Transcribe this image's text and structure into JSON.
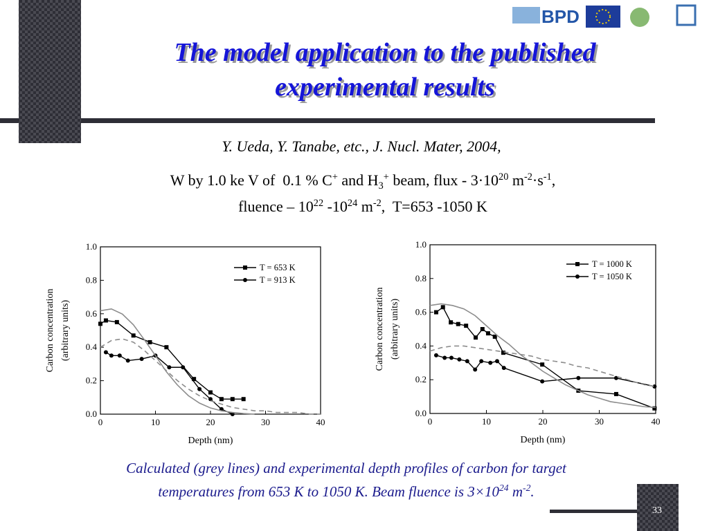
{
  "slide": {
    "logo": "BPD",
    "title": [
      "The model application to the published",
      "experimental results"
    ],
    "reference": "Y. Ueda, Y. Tanabe, etc., J. Nucl. Mater, 2004,",
    "conditions": [
      [
        {
          "text": "W by 1.0 ke V of  0.1 % C"
        },
        {
          "sup": "+"
        },
        {
          "text": " and H"
        },
        {
          "sub": "3"
        },
        {
          "sup": "+"
        },
        {
          "text": " beam, flux - 3·10"
        },
        {
          "sup": "20"
        },
        {
          "text": " m"
        },
        {
          "sup": "-2"
        },
        {
          "text": "·s"
        },
        {
          "sup": "-1"
        },
        {
          "text": ","
        }
      ],
      [
        {
          "text": "fluence – 10"
        },
        {
          "sup": "22"
        },
        {
          "text": " -10"
        },
        {
          "sup": "24"
        },
        {
          "text": " m"
        },
        {
          "sup": "-2"
        },
        {
          "text": ",  T=653 -1050 K"
        }
      ]
    ],
    "caption": [
      [
        {
          "text": "Calculated (grey lines) and experimental depth profiles of carbon for target"
        }
      ],
      [
        {
          "text": "temperatures from 653 K to 1050 K. Beam fluence is 3×10"
        },
        {
          "sup": "24"
        },
        {
          "text": " m"
        },
        {
          "sup": "-2"
        },
        {
          "text": "."
        }
      ]
    ],
    "page": "33"
  },
  "chart_data": [
    {
      "type": "line",
      "xlabel": "Depth (nm)",
      "ylabel": [
        "Carbon concentration",
        "(arbitrary units)"
      ],
      "xlim": [
        0,
        40
      ],
      "ylim": [
        0,
        1
      ],
      "xticks": [
        0,
        10,
        20,
        30,
        40
      ],
      "yticks": [
        {
          "value": 0,
          "label": "0.0"
        },
        0.2,
        0.4,
        0.6,
        0.8,
        {
          "value": 1,
          "label": "1.0"
        }
      ],
      "legend": "upper right",
      "series": [
        {
          "name": "T = 653 K",
          "color": "#000000",
          "marker": "square",
          "x": [
            0,
            1,
            3,
            6,
            9,
            12,
            17,
            20,
            22,
            24,
            26
          ],
          "values": [
            0.54,
            0.56,
            0.55,
            0.47,
            0.43,
            0.4,
            0.21,
            0.13,
            0.09,
            0.09,
            0.09
          ]
        },
        {
          "name": "T = 913 K",
          "color": "#000000",
          "marker": "circle",
          "x": [
            1,
            2,
            3.5,
            5,
            7.5,
            10,
            12.5,
            15,
            18,
            20,
            22,
            24
          ],
          "values": [
            0.37,
            0.35,
            0.35,
            0.32,
            0.33,
            0.35,
            0.28,
            0.28,
            0.15,
            0.09,
            0.03,
            0.0
          ]
        },
        {
          "color": "#8c8c8c",
          "x": [
            0,
            2,
            4,
            6,
            8,
            10,
            12,
            14,
            16,
            18,
            20,
            22,
            24,
            26,
            28
          ],
          "values": [
            0.618,
            0.629,
            0.598,
            0.534,
            0.444,
            0.35,
            0.253,
            0.174,
            0.11,
            0.066,
            0.037,
            0.02,
            0.01,
            0.004,
            0.0
          ]
        },
        {
          "color": "#8c8c8c",
          "dash": true,
          "x": [
            0,
            2,
            4,
            6,
            8,
            10,
            12,
            14,
            16,
            18,
            20,
            22,
            24,
            26,
            28,
            30,
            32,
            34,
            36,
            38,
            40
          ],
          "values": [
            0.4,
            0.44,
            0.45,
            0.43,
            0.38,
            0.32,
            0.26,
            0.2,
            0.15,
            0.11,
            0.08,
            0.06,
            0.04,
            0.03,
            0.02,
            0.02,
            0.01,
            0.01,
            0.01,
            0.0,
            0.0
          ]
        }
      ]
    },
    {
      "type": "line",
      "xlabel": "Depth (nm)",
      "ylabel": [
        "Carbon concentration",
        "(arbitrary units)"
      ],
      "xlim": [
        0,
        40
      ],
      "ylim": [
        0,
        1
      ],
      "xticks": [
        0,
        10,
        20,
        30,
        40
      ],
      "yticks": [
        {
          "value": 0,
          "label": "0.0"
        },
        0.2,
        0.4,
        0.6,
        0.8,
        {
          "value": 1,
          "label": "1.0"
        }
      ],
      "legend": "upper right",
      "series": [
        {
          "name": "T = 1000 K",
          "color": "#000000",
          "marker": "square",
          "x": [
            1.1,
            2.3,
            3.7,
            5,
            6.4,
            8.1,
            9.3,
            10.3,
            11.5,
            13,
            19.9,
            26.3,
            33,
            39.8
          ],
          "values": [
            0.6,
            0.63,
            0.54,
            0.53,
            0.52,
            0.45,
            0.5,
            0.475,
            0.455,
            0.36,
            0.29,
            0.135,
            0.115,
            0.03
          ]
        },
        {
          "name": "T = 1050 K",
          "color": "#000000",
          "marker": "circle",
          "x": [
            1.1,
            2.6,
            3.8,
            5.2,
            6.6,
            8,
            9.1,
            10.7,
            11.9,
            13.1,
            19.9,
            26.3,
            33,
            39.8
          ],
          "values": [
            0.345,
            0.33,
            0.33,
            0.32,
            0.31,
            0.26,
            0.31,
            0.3,
            0.31,
            0.27,
            0.19,
            0.21,
            0.21,
            0.16
          ]
        },
        {
          "color": "#8c8c8c",
          "x": [
            0,
            2,
            4,
            6,
            8,
            10,
            12,
            14,
            16,
            18,
            20,
            22,
            24,
            26,
            28,
            30,
            32,
            34,
            36,
            38,
            40
          ],
          "values": [
            0.64,
            0.65,
            0.64,
            0.62,
            0.58,
            0.52,
            0.46,
            0.41,
            0.35,
            0.3,
            0.25,
            0.21,
            0.17,
            0.14,
            0.11,
            0.09,
            0.07,
            0.06,
            0.05,
            0.04,
            0.035
          ]
        },
        {
          "color": "#8c8c8c",
          "dash": true,
          "x": [
            0,
            2,
            4,
            6,
            8,
            10,
            12,
            14,
            16,
            18,
            20,
            22,
            24,
            26,
            28,
            30,
            32,
            34,
            36,
            38,
            40
          ],
          "values": [
            0.37,
            0.39,
            0.4,
            0.4,
            0.39,
            0.38,
            0.37,
            0.36,
            0.35,
            0.34,
            0.32,
            0.31,
            0.3,
            0.28,
            0.27,
            0.25,
            0.23,
            0.21,
            0.19,
            0.17,
            0.16
          ]
        }
      ]
    }
  ]
}
